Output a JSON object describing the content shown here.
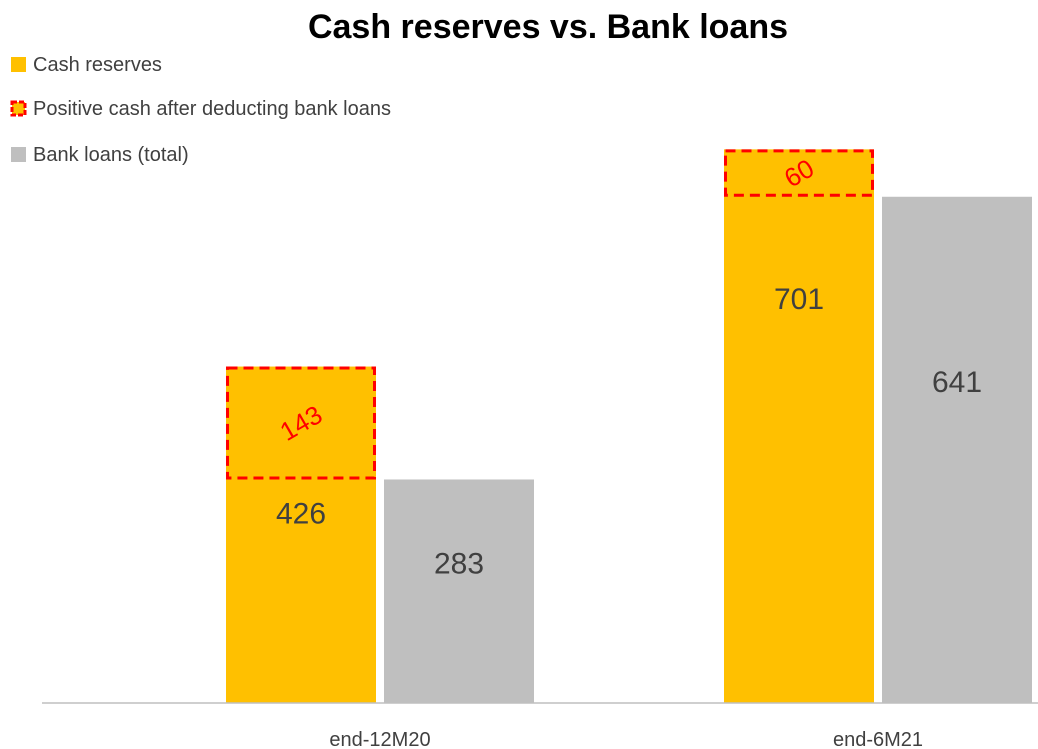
{
  "chart_data": {
    "type": "bar",
    "title": "Cash reserves vs. Bank loans",
    "categories": [
      "end-12M20",
      "end-6M21"
    ],
    "series": [
      {
        "name": "Cash reserves",
        "values": [
          426,
          701
        ],
        "color": "#ffc000"
      },
      {
        "name": "Positive cash after deducting bank loans",
        "values": [
          143,
          60
        ],
        "color": "#ffc000",
        "border_color": "#ff0000"
      },
      {
        "name": "Bank loans (total)",
        "values": [
          283,
          641
        ],
        "color": "#bfbfbf"
      }
    ],
    "legend_position": "top-left",
    "grid": false,
    "ylim": [
      0,
      880
    ]
  }
}
